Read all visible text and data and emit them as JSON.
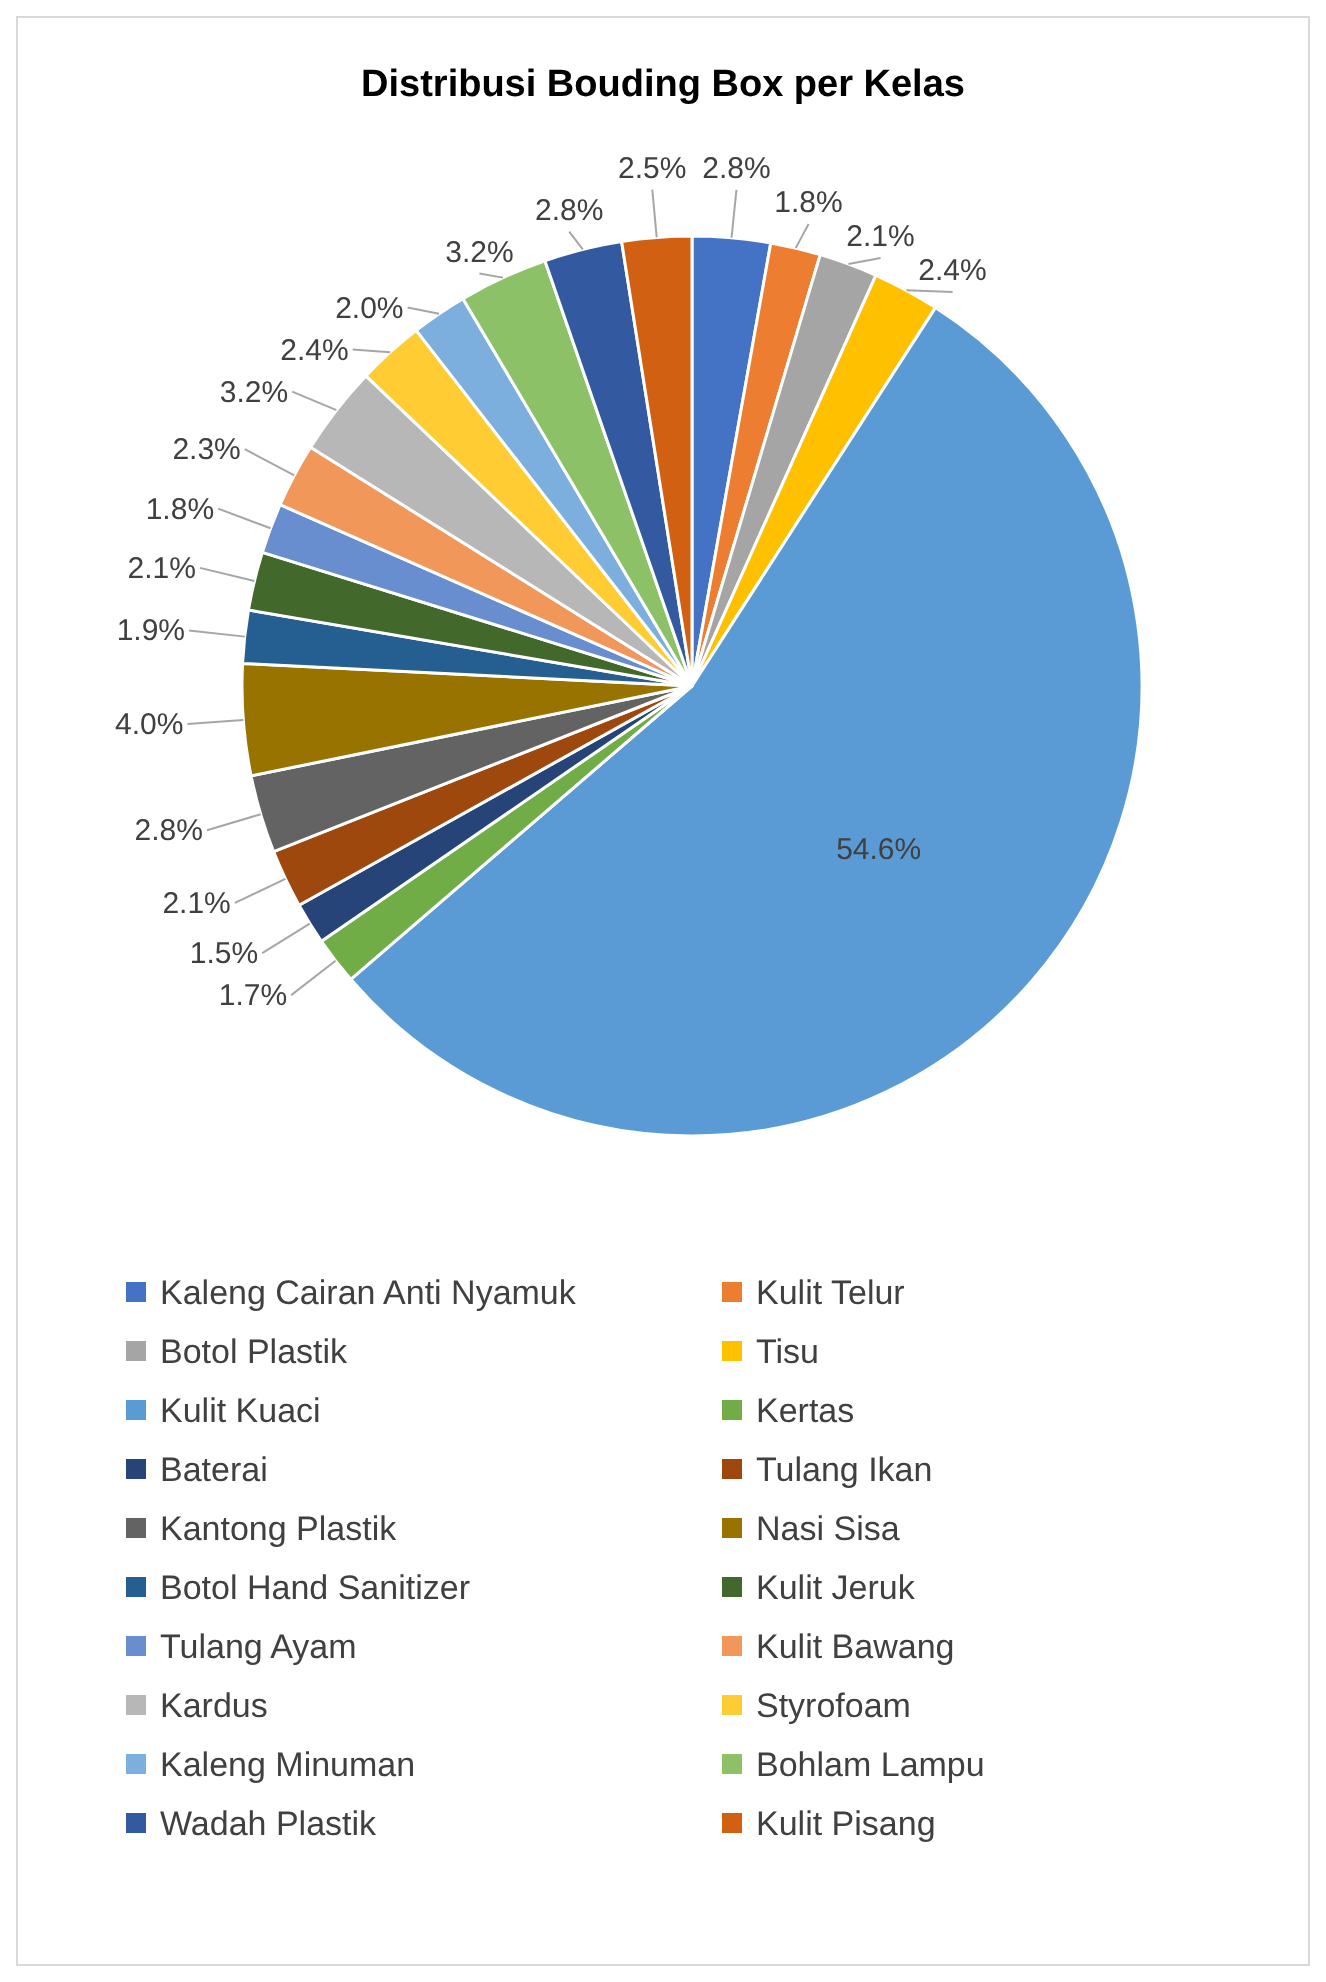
{
  "chart_data": {
    "type": "pie",
    "title": "Distribusi Bouding Box per Kelas",
    "categories": [
      "Kaleng Cairan Anti Nyamuk",
      "Kulit Telur",
      "Botol Plastik",
      "Tisu",
      "Kulit Kuaci",
      "Kertas",
      "Baterai",
      "Tulang Ikan",
      "Kantong Plastik",
      "Nasi Sisa",
      "Botol Hand Sanitizer",
      "Kulit Jeruk",
      "Tulang Ayam",
      "Kulit Bawang",
      "Kardus",
      "Styrofoam",
      "Kaleng Minuman",
      "Bohlam Lampu",
      "Wadah Plastik",
      "Kulit Pisang"
    ],
    "values": [
      2.8,
      1.8,
      2.1,
      2.4,
      54.6,
      1.7,
      1.5,
      2.1,
      2.8,
      4.0,
      1.9,
      2.1,
      1.8,
      2.3,
      3.2,
      2.4,
      2.0,
      3.2,
      2.8,
      2.5
    ],
    "colors": [
      "#4472c4",
      "#ed7d31",
      "#a5a5a5",
      "#ffc000",
      "#5b9bd5",
      "#70ad47",
      "#264478",
      "#9e480e",
      "#636363",
      "#997300",
      "#255e91",
      "#43682b",
      "#698ed0",
      "#f1975a",
      "#b7b7b7",
      "#ffcd33",
      "#7cafdd",
      "#8cc168",
      "#335aa1",
      "#d26012"
    ],
    "value_labels": [
      "2.8%",
      "1.8%",
      "2.1%",
      "2.4%",
      "54.6%",
      "1.7%",
      "1.5%",
      "2.1%",
      "2.8%",
      "4.0%",
      "1.9%",
      "2.1%",
      "1.8%",
      "2.3%",
      "3.2%",
      "2.4%",
      "2.0%",
      "3.2%",
      "2.8%",
      "2.5%"
    ],
    "legend": "bottom"
  }
}
